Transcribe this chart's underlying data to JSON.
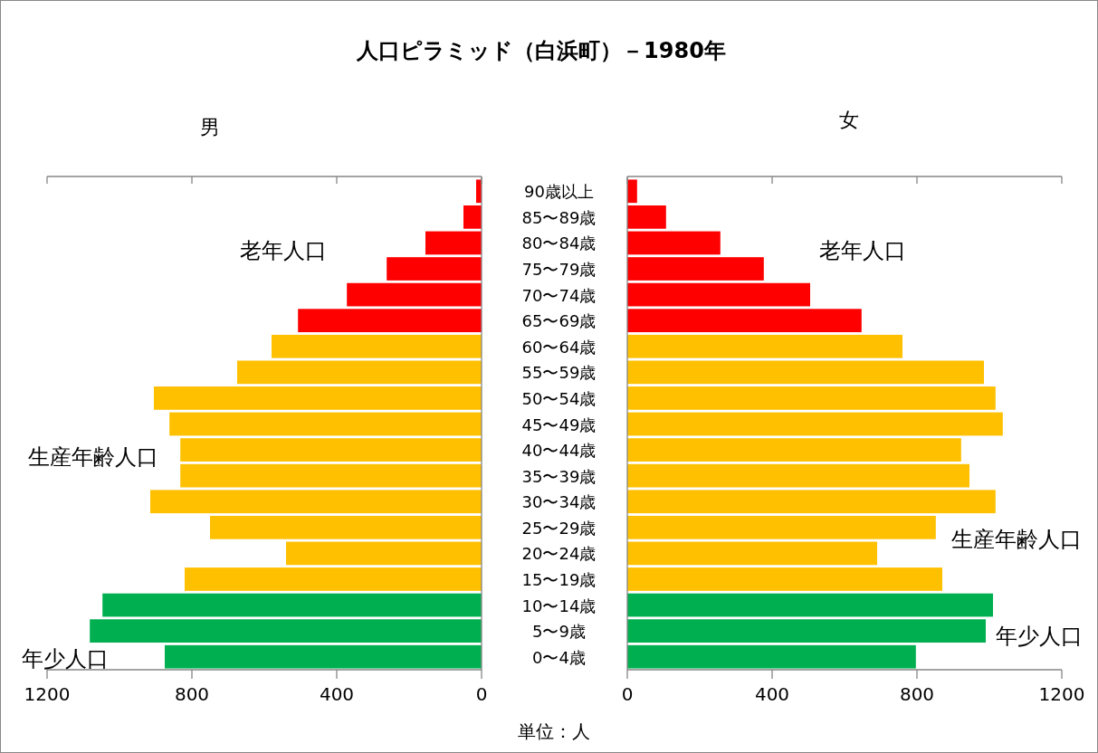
{
  "chart_data": [
    {
      "type": "bar",
      "orientation": "horizontal",
      "title": "人口ピラミッド（白浜町）－1980年",
      "subtitle": "男",
      "categories": [
        "90歳以上",
        "85〜89歳",
        "80〜84歳",
        "75〜79歳",
        "70〜74歳",
        "65〜69歳",
        "60〜64歳",
        "55〜59歳",
        "50〜54歳",
        "45〜49歳",
        "40〜44歳",
        "35〜39歳",
        "30〜34歳",
        "25〜29歳",
        "20〜24歳",
        "15〜19歳",
        "10〜14歳",
        "5〜9歳",
        "0〜4歳"
      ],
      "values": [
        15,
        50,
        155,
        262,
        372,
        507,
        580,
        675,
        905,
        862,
        832,
        832,
        915,
        750,
        540,
        820,
        1047,
        1082,
        875
      ],
      "colors": [
        "#ff0000",
        "#ff0000",
        "#ff0000",
        "#ff0000",
        "#ff0000",
        "#ff0000",
        "#ffc000",
        "#ffc000",
        "#ffc000",
        "#ffc000",
        "#ffc000",
        "#ffc000",
        "#ffc000",
        "#ffc000",
        "#ffc000",
        "#ffc000",
        "#00b050",
        "#00b050",
        "#00b050"
      ],
      "xlim": [
        1200,
        0
      ],
      "xticks": [
        1200,
        800,
        400,
        0
      ],
      "annotations": [
        "老年人口",
        "生産年齢人口",
        "年少人口",
        "単位：人"
      ]
    },
    {
      "type": "bar",
      "orientation": "horizontal",
      "title": "女",
      "categories": [
        null,
        null,
        null,
        null,
        null,
        null,
        null,
        null,
        null,
        null,
        null,
        null,
        null,
        null,
        null,
        null,
        null,
        null,
        null
      ],
      "values": [
        27,
        107,
        257,
        377,
        505,
        647,
        760,
        985,
        1017,
        1037,
        922,
        945,
        1017,
        852,
        690,
        870,
        1010,
        990,
        797
      ],
      "colors": [
        "#ff0000",
        "#ff0000",
        "#ff0000",
        "#ff0000",
        "#ff0000",
        "#ff0000",
        "#ffc000",
        "#ffc000",
        "#ffc000",
        "#ffc000",
        "#ffc000",
        "#ffc000",
        "#ffc000",
        "#ffc000",
        "#ffc000",
        "#ffc000",
        "#00b050",
        "#00b050",
        "#00b050"
      ],
      "xlim": [
        0,
        1200
      ],
      "xticks": [
        0,
        400,
        800,
        1200
      ],
      "annotations": [
        "老年人口",
        "生産年齢人口",
        "年少人口"
      ]
    }
  ]
}
